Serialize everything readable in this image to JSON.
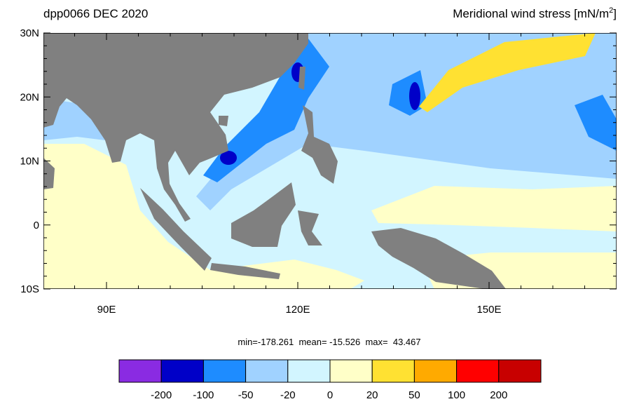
{
  "header": {
    "title_left": "dpp0066 DEC 2020",
    "title_right": {
      "text": "Meridional wind stress [mN/m",
      "superscript": "2",
      "suffix": "]"
    }
  },
  "map": {
    "lat_labels": [
      "30N",
      "20N",
      "10N",
      "0",
      "10S"
    ],
    "lon_labels": [
      "90E",
      "120E",
      "150E"
    ]
  },
  "stats": "min=-178.261  mean= -15.526  max=  43.467",
  "colorbar": {
    "colors": [
      "#8a2be2",
      "#0000c8",
      "#1e8cff",
      "#a0d2ff",
      "#d2f5ff",
      "#ffffc8",
      "#ffe132",
      "#ffaa00",
      "#ff0000",
      "#c80000"
    ],
    "labels": [
      "-200",
      "-100",
      "-50",
      "-20",
      "0",
      "20",
      "50",
      "100",
      "200"
    ]
  }
}
